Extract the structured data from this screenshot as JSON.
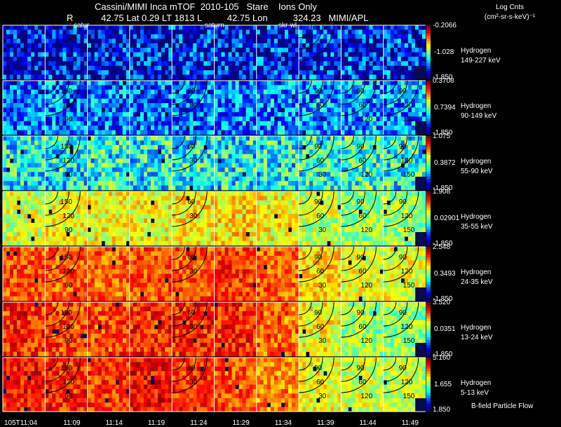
{
  "header": {
    "line1": "Cassini/MIMI Inca mTOF  2010-105   Stare    Ions Only",
    "line2": "R           42.75 Lat 0.29 LT 1813 L          42.75 Lon          324.23   MIMI/APL"
  },
  "colorbar_title": "Log Cnts",
  "colorbar_units": "(cm²-sr-s-keV)⁻¹",
  "overlay_labels": [
    "satur",
    "saturn",
    "skr-wl"
  ],
  "footer_note": "B-field Particle Flow",
  "chart_data": {
    "type": "heatmap",
    "columns": 10,
    "time_labels": [
      "105T11:04",
      "11:09",
      "11:14",
      "11:19",
      "11:24",
      "11:29",
      "11:34",
      "11:39",
      "11:44",
      "11:49"
    ],
    "rows": [
      {
        "species": "Hydrogen",
        "energy": "149-227 keV",
        "cbar": [
          "-0.2066",
          "-1.028",
          "-1.850"
        ],
        "level": [
          0.1,
          0.12,
          0.1,
          0.1,
          0.12,
          0.12,
          0.12,
          0.14,
          0.14,
          0.14
        ],
        "noise": 0.5
      },
      {
        "species": "Hydrogen",
        "energy": "90-149 keV",
        "cbar": [
          "0.3708",
          "0.7394",
          "-1.850"
        ],
        "level": [
          0.22,
          0.24,
          0.24,
          0.22,
          0.24,
          0.24,
          0.26,
          0.28,
          0.28,
          0.28
        ],
        "noise": 0.4
      },
      {
        "species": "Hydrogen",
        "energy": "55-90 keV",
        "cbar": [
          "1.075",
          "0.3872",
          "-1.850"
        ],
        "level": [
          0.38,
          0.38,
          0.4,
          0.38,
          0.38,
          0.38,
          0.38,
          0.4,
          0.42,
          0.4
        ],
        "noise": 0.4
      },
      {
        "species": "Hydrogen",
        "energy": "35-55 keV",
        "cbar": [
          "1.908",
          "0.02901",
          "-1.850"
        ],
        "level": [
          0.58,
          0.62,
          0.62,
          0.62,
          0.64,
          0.66,
          0.62,
          0.56,
          0.52,
          0.52
        ],
        "noise": 0.25
      },
      {
        "species": "Hydrogen",
        "energy": "24-35 keV",
        "cbar": [
          "2.548",
          "0.3493",
          "-1.850"
        ],
        "level": [
          0.8,
          0.78,
          0.78,
          0.8,
          0.8,
          0.82,
          0.78,
          0.66,
          0.6,
          0.6
        ],
        "noise": 0.22
      },
      {
        "species": "Hydrogen",
        "energy": "13-24 keV",
        "cbar": [
          "3.520",
          "0.0351",
          "-1.850"
        ],
        "level": [
          0.84,
          0.82,
          0.8,
          0.84,
          0.84,
          0.84,
          0.78,
          0.62,
          0.52,
          0.52
        ],
        "noise": 0.25
      },
      {
        "species": "Hydrogen",
        "energy": "5-13 keV",
        "cbar": [
          "5.160",
          "1.655",
          "1.850"
        ],
        "level": [
          0.86,
          0.84,
          0.82,
          0.88,
          0.84,
          0.8,
          0.74,
          0.62,
          0.58,
          0.56
        ],
        "noise": 0.22
      }
    ],
    "contour_labels": {
      "col1": [
        "150",
        "120",
        "90"
      ],
      "col4": [
        "60",
        "30"
      ],
      "col7": [
        "90",
        "60",
        "30"
      ],
      "col8": [
        "90",
        "60",
        "120"
      ],
      "col9": [
        "90",
        "120",
        "150"
      ]
    }
  }
}
